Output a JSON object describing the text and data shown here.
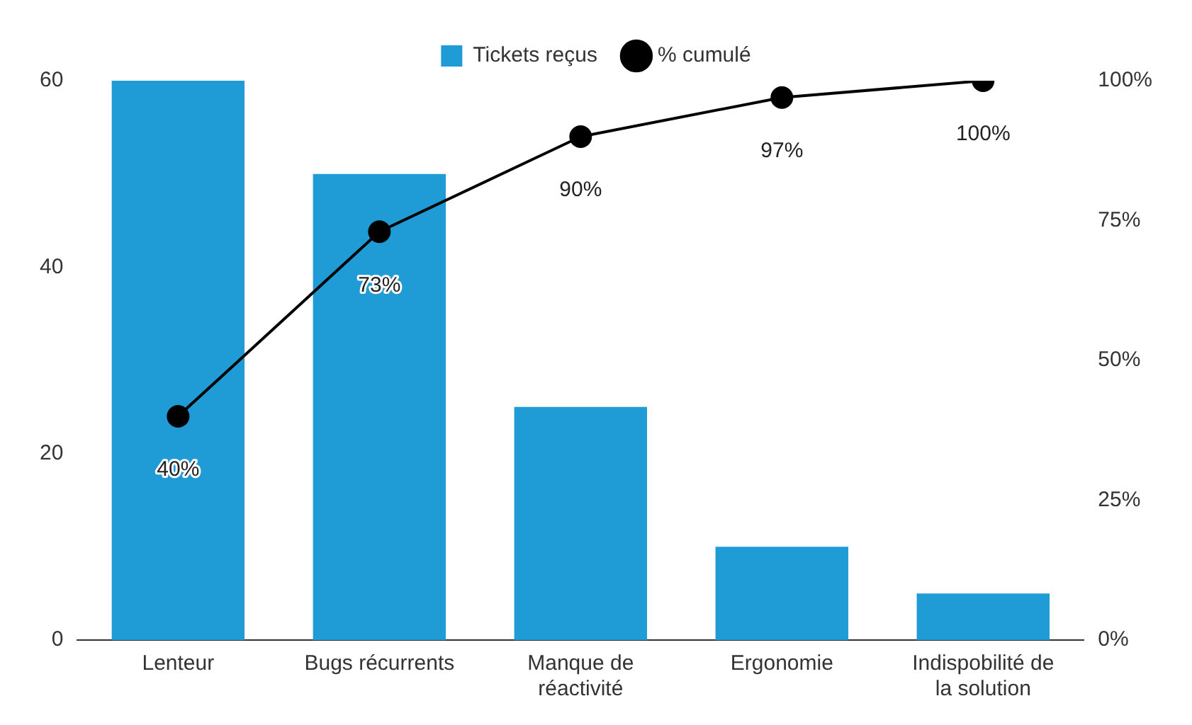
{
  "chart_data": {
    "type": "bar",
    "categories": [
      "Lenteur",
      "Bugs récurrents",
      "Manque de réactivité",
      "Ergonomie",
      "Indispobilité de la solution"
    ],
    "series": [
      {
        "name": "Tickets reçus",
        "color": "#1f9bd6",
        "values": [
          60,
          50,
          25,
          10,
          5
        ]
      },
      {
        "name": "% cumulé",
        "type": "line",
        "axis": "y2",
        "color": "#000000",
        "values": [
          40,
          73,
          90,
          97,
          100
        ],
        "value_labels": [
          "40%",
          "73%",
          "90%",
          "97%",
          "100%"
        ]
      }
    ],
    "ylim": [
      0,
      60
    ],
    "yticks": [
      0,
      20,
      40,
      60
    ],
    "y2lim": [
      0,
      100
    ],
    "y2ticks": [
      {
        "value": 0,
        "label": "0%"
      },
      {
        "value": 25,
        "label": "25%"
      },
      {
        "value": 50,
        "label": "50%"
      },
      {
        "value": 75,
        "label": "75%"
      },
      {
        "value": 100,
        "label": "100%"
      }
    ],
    "grid": false,
    "legend": "top",
    "marker": "circle",
    "line_style": "solid"
  }
}
